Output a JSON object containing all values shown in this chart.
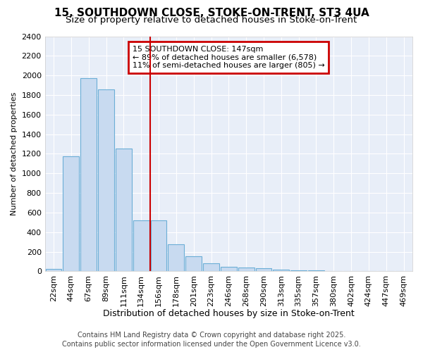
{
  "title1": "15, SOUTHDOWN CLOSE, STOKE-ON-TRENT, ST3 4UA",
  "title2": "Size of property relative to detached houses in Stoke-on-Trent",
  "xlabel": "Distribution of detached houses by size in Stoke-on-Trent",
  "ylabel": "Number of detached properties",
  "categories": [
    "22sqm",
    "44sqm",
    "67sqm",
    "89sqm",
    "111sqm",
    "134sqm",
    "156sqm",
    "178sqm",
    "201sqm",
    "223sqm",
    "246sqm",
    "268sqm",
    "290sqm",
    "313sqm",
    "335sqm",
    "357sqm",
    "380sqm",
    "402sqm",
    "424sqm",
    "447sqm",
    "469sqm"
  ],
  "values": [
    25,
    1175,
    1975,
    1855,
    1250,
    520,
    520,
    275,
    155,
    85,
    45,
    35,
    30,
    15,
    10,
    8,
    5,
    3,
    2,
    1,
    1
  ],
  "bar_color": "#c8daf0",
  "bar_edge_color": "#6baed6",
  "vline_x_index": 5.5,
  "vline_color": "#cc0000",
  "annotation_text": "15 SOUTHDOWN CLOSE: 147sqm\n← 89% of detached houses are smaller (6,578)\n11% of semi-detached houses are larger (805) →",
  "annotation_box_color": "#cc0000",
  "ylim": [
    0,
    2400
  ],
  "yticks": [
    0,
    200,
    400,
    600,
    800,
    1000,
    1200,
    1400,
    1600,
    1800,
    2000,
    2200,
    2400
  ],
  "background_color": "#ffffff",
  "plot_bg_color": "#e8eef8",
  "grid_color": "#ffffff",
  "footer1": "Contains HM Land Registry data © Crown copyright and database right 2025.",
  "footer2": "Contains public sector information licensed under the Open Government Licence v3.0.",
  "title_fontsize": 11,
  "subtitle_fontsize": 9.5,
  "xlabel_fontsize": 9,
  "ylabel_fontsize": 8,
  "tick_fontsize": 8,
  "annotation_fontsize": 8,
  "footer_fontsize": 7
}
